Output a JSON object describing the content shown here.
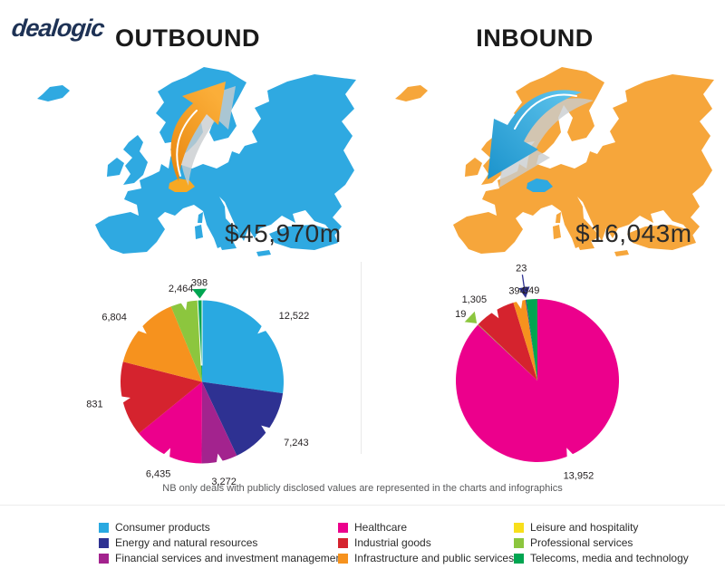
{
  "brand": {
    "logo_text": "dealogic",
    "logo_color": "#1E3255"
  },
  "panels": [
    {
      "id": "outbound",
      "title": "OUTBOUND",
      "total_label": "$45,970m",
      "map_color": "#2FA9E1",
      "highlight_color": "#F7A823",
      "arrow_color_from": "#E8860D",
      "arrow_color_to": "#FBAE39",
      "arrow_direction": "from Switzerland outward to northeast"
    },
    {
      "id": "inbound",
      "title": "INBOUND",
      "total_label": "$16,043m",
      "map_color": "#F6A63B",
      "highlight_color": "#2FA9E1",
      "arrow_color_from": "#62C6EE",
      "arrow_color_to": "#1B93CC",
      "arrow_direction": "from northeast inward to Switzerland"
    }
  ],
  "note": "NB only deals with publicly disclosed values are represented in the charts and infographics",
  "chart_data": [
    {
      "type": "pie",
      "panel": "OUTBOUND",
      "name": "outbound-deal-value-by-sector",
      "units": "$m",
      "direction": "clockwise",
      "start_angle_deg": 0,
      "total": 45969,
      "map_total_label": "$45,970m",
      "slices": [
        {
          "label": "Consumer products",
          "value": 12522,
          "color": "#29A9E1"
        },
        {
          "label": "Energy and natural resources",
          "value": 7243,
          "color": "#2E3192"
        },
        {
          "label": "Financial services and investment management",
          "value": 3272,
          "color": "#A3238E"
        },
        {
          "label": "Healthcare",
          "value": 6435,
          "color": "#EC008C"
        },
        {
          "label": "Industrial goods",
          "value": 6831,
          "color": "#D5232E"
        },
        {
          "label": "Infrastructure and public services",
          "value": 6804,
          "color": "#F6921E"
        },
        {
          "label": "Professional services",
          "value": 2464,
          "color": "#8CC63E"
        },
        {
          "label": "Telecoms, media and technology",
          "value": 398,
          "color": "#00A551",
          "marker": "triangle"
        }
      ]
    },
    {
      "type": "pie",
      "panel": "INBOUND",
      "name": "inbound-deal-value-by-sector",
      "units": "$m",
      "direction": "clockwise",
      "start_angle_deg": 0,
      "total": 16042,
      "map_total_label": "$16,043m",
      "slices": [
        {
          "label": "Healthcare",
          "value": 13952,
          "color": "#EC008C"
        },
        {
          "label": "Professional services",
          "value": 19,
          "color": "#8CC63E",
          "marker": "triangle"
        },
        {
          "label": "Industrial goods",
          "value": 1305,
          "color": "#D5232E"
        },
        {
          "label": "Infrastructure and public services",
          "value": 394,
          "color": "#F6921E"
        },
        {
          "label": "Energy and natural resources",
          "value": 23,
          "color": "#2E3192",
          "marker": "callout-arrow"
        },
        {
          "label": "Telecoms, media and technology",
          "value": 349,
          "color": "#00A551"
        }
      ]
    }
  ],
  "legend": {
    "columns": [
      [
        {
          "label": "Consumer products",
          "color": "#29A9E1"
        },
        {
          "label": "Energy and natural resources",
          "color": "#2E3192"
        },
        {
          "label": "Financial services and investment management",
          "color": "#A3238E"
        }
      ],
      [
        {
          "label": "Healthcare",
          "color": "#EC008C"
        },
        {
          "label": "Industrial goods",
          "color": "#D5232E"
        },
        {
          "label": "Infrastructure and public services",
          "color": "#F6921E"
        }
      ],
      [
        {
          "label": "Leisure and hospitality",
          "color": "#F8DF1B"
        },
        {
          "label": "Professional services",
          "color": "#8CC63E"
        },
        {
          "label": "Telecoms, media and technology",
          "color": "#00A551"
        }
      ]
    ]
  }
}
